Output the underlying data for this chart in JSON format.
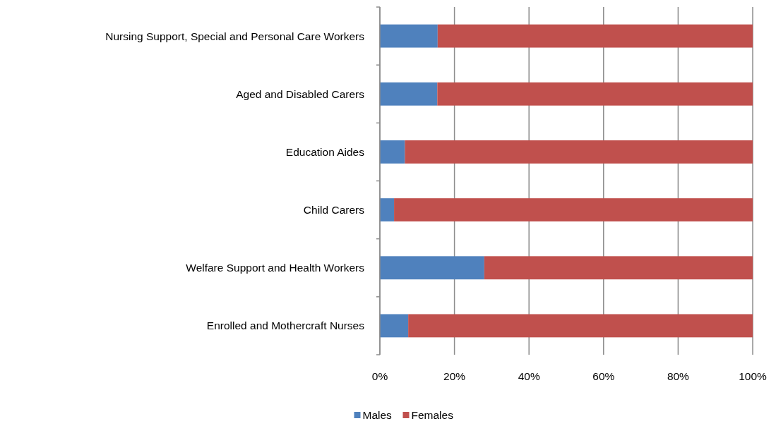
{
  "chart_data": {
    "type": "bar",
    "orientation": "horizontal",
    "stacked": true,
    "categories": [
      "Nursing Support, Special and Personal Care Workers",
      "Aged and Disabled Carers",
      "Education Aides",
      "Child Carers",
      "Welfare Support and Health Workers",
      "Enrolled and Mothercraft Nurses"
    ],
    "series": [
      {
        "name": "Males",
        "color": "#4f81bd",
        "values": [
          15.5,
          15.4,
          6.7,
          3.8,
          28.0,
          7.6
        ]
      },
      {
        "name": "Females",
        "color": "#c0504d",
        "values": [
          84.5,
          84.6,
          93.3,
          96.2,
          72.0,
          92.4
        ]
      }
    ],
    "xlim": [
      0,
      100
    ],
    "xticks": [
      {
        "value": 0,
        "label": "0%"
      },
      {
        "value": 20,
        "label": "20%"
      },
      {
        "value": 40,
        "label": "40%"
      },
      {
        "value": 60,
        "label": "60%"
      },
      {
        "value": 80,
        "label": "80%"
      },
      {
        "value": 100,
        "label": "100%"
      }
    ],
    "grid": "x",
    "legend": "bottom"
  }
}
